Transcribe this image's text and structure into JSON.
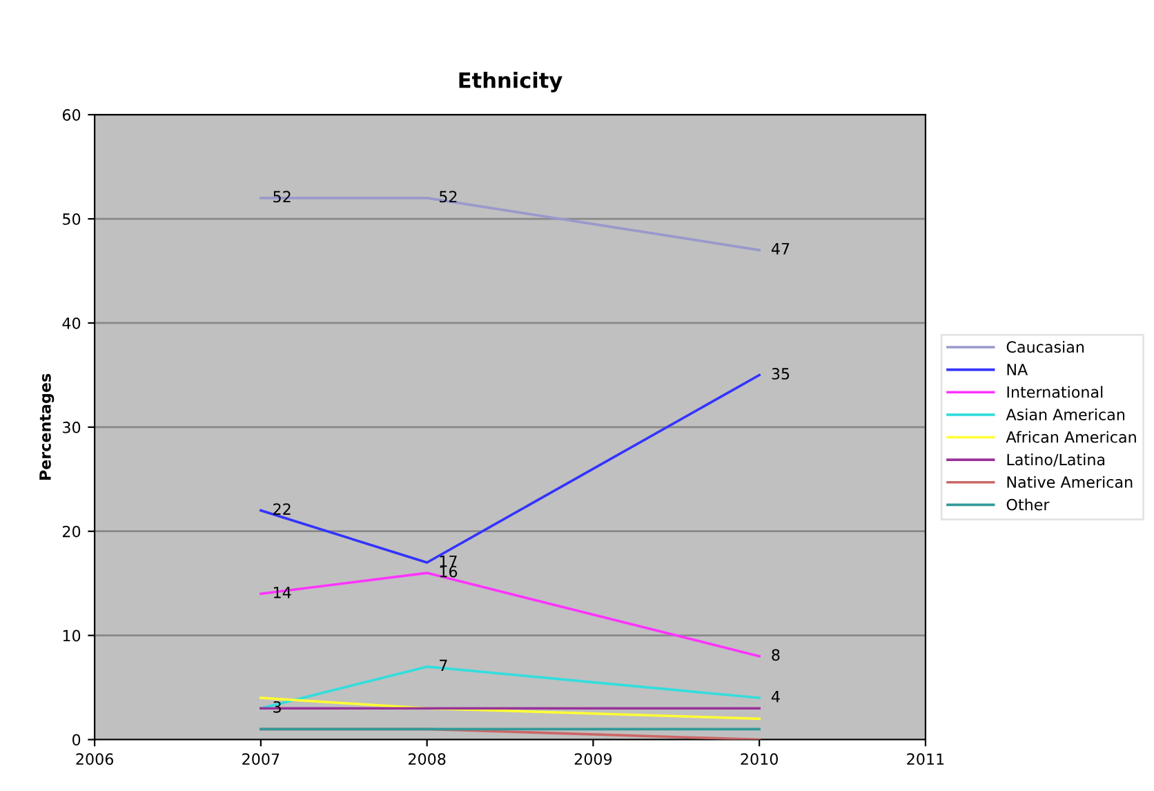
{
  "chart_data": {
    "type": "line",
    "title": "Ethnicity",
    "ylabel": "Percentages",
    "x": [
      2007,
      2008,
      2010
    ],
    "series": [
      {
        "name": "Caucasian",
        "color": "#9999cc",
        "values": [
          52,
          52,
          47
        ],
        "value_labels": [
          "52",
          "52",
          "47"
        ]
      },
      {
        "name": "NA",
        "color": "#3333ff",
        "values": [
          22,
          17,
          35
        ],
        "value_labels": [
          "22",
          "17",
          "35"
        ]
      },
      {
        "name": "International",
        "color": "#ff33ff",
        "values": [
          14,
          16,
          8
        ],
        "value_labels": [
          "14",
          "16",
          "8"
        ]
      },
      {
        "name": "Asian American",
        "color": "#33dddd",
        "values": [
          3,
          7,
          4
        ],
        "value_labels": [
          "3",
          "7",
          "4"
        ]
      },
      {
        "name": "African American",
        "color": "#ffff33",
        "values": [
          4,
          3,
          2
        ]
      },
      {
        "name": "Latino/Latina",
        "color": "#993399",
        "values": [
          3,
          3,
          3
        ]
      },
      {
        "name": "Native American",
        "color": "#cc6666",
        "values": [
          1,
          1,
          0
        ]
      },
      {
        "name": "Other",
        "color": "#339999",
        "values": [
          1,
          1,
          1
        ]
      }
    ],
    "xlim": [
      2006,
      2011
    ],
    "xticks": [
      2006,
      2007,
      2008,
      2009,
      2010,
      2011
    ],
    "ylim": [
      0,
      60
    ],
    "yticks": [
      0,
      10,
      20,
      30,
      40,
      50,
      60
    ],
    "grid": "y",
    "legend": "right",
    "marker": "none",
    "line_style": "solid"
  }
}
